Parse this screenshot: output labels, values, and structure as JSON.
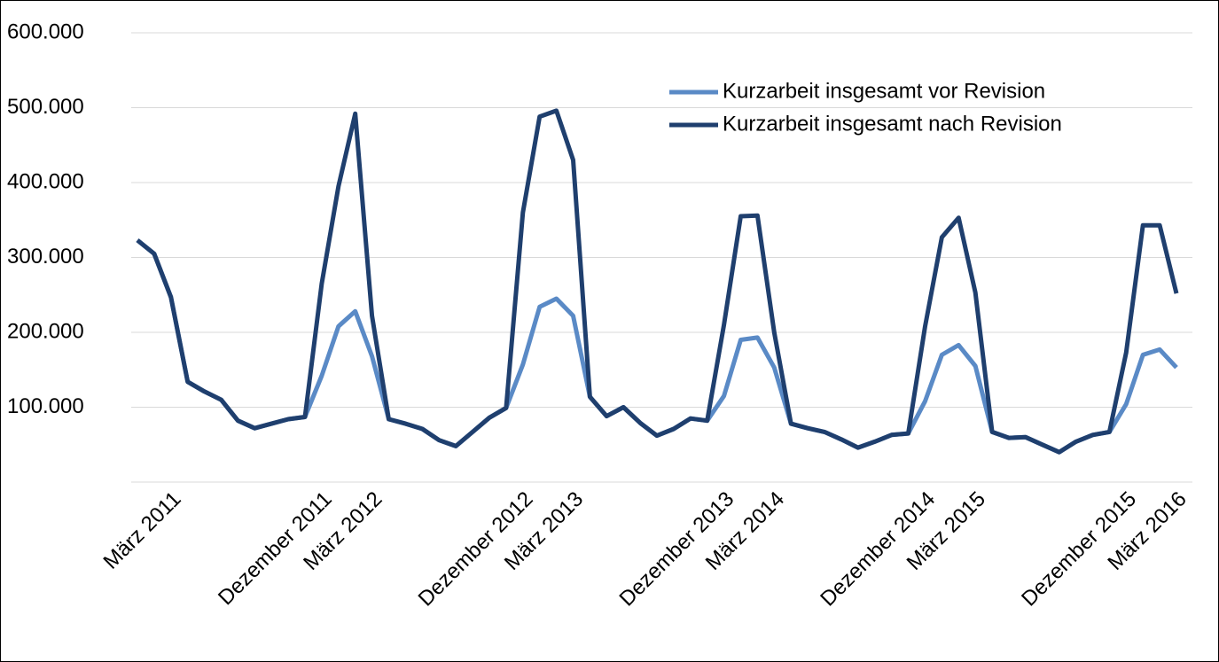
{
  "chart_data": {
    "type": "line",
    "categories": [
      null,
      null,
      "März 2011",
      null,
      null,
      null,
      null,
      null,
      null,
      null,
      null,
      "Dezember 2011",
      null,
      null,
      "März 2012",
      null,
      null,
      null,
      null,
      null,
      null,
      null,
      null,
      "Dezember 2012",
      null,
      null,
      "März 2013",
      null,
      null,
      null,
      null,
      null,
      null,
      null,
      null,
      "Dezember 2013",
      null,
      null,
      "März 2014",
      null,
      null,
      null,
      null,
      null,
      null,
      null,
      null,
      "Dezember 2014",
      null,
      null,
      "März 2015",
      null,
      null,
      null,
      null,
      null,
      null,
      null,
      null,
      "Dezember 2015",
      null,
      null,
      "März 2016"
    ],
    "series": [
      {
        "name": "Kurzarbeit insgesamt vor Revision",
        "color": "#5a8ac6",
        "values": [
          323000,
          305000,
          247000,
          134000,
          121000,
          110000,
          82000,
          72000,
          78000,
          84000,
          87000,
          142000,
          208000,
          228000,
          168000,
          84000,
          78000,
          71000,
          56000,
          48000,
          67000,
          86000,
          99000,
          157000,
          234000,
          245000,
          222000,
          114000,
          88000,
          100000,
          79000,
          62000,
          71000,
          85000,
          82000,
          115000,
          190000,
          193000,
          153000,
          78000,
          72000,
          67000,
          57000,
          46000,
          54000,
          63000,
          65000,
          108000,
          170000,
          183000,
          155000,
          67000,
          59000,
          60000,
          50000,
          40000,
          54000,
          63000,
          67000,
          104000,
          170000,
          177000,
          153000
        ]
      },
      {
        "name": "Kurzarbeit insgesamt nach Revision",
        "color": "#1f3f6e",
        "values": [
          323000,
          305000,
          247000,
          134000,
          121000,
          110000,
          82000,
          72000,
          78000,
          84000,
          87000,
          265000,
          395000,
          492000,
          222000,
          84000,
          78000,
          71000,
          56000,
          48000,
          67000,
          86000,
          99000,
          360000,
          488000,
          496000,
          430000,
          114000,
          88000,
          100000,
          79000,
          62000,
          71000,
          85000,
          82000,
          210000,
          355000,
          356000,
          200000,
          78000,
          72000,
          67000,
          57000,
          46000,
          54000,
          63000,
          65000,
          208000,
          327000,
          353000,
          253000,
          67000,
          59000,
          60000,
          50000,
          40000,
          54000,
          63000,
          67000,
          173000,
          343000,
          343000,
          252000
        ]
      }
    ],
    "ylim": [
      0,
      600000
    ],
    "yticks": [
      {
        "value": 100000,
        "label": "100.000"
      },
      {
        "value": 200000,
        "label": "200.000"
      },
      {
        "value": 300000,
        "label": "300.000"
      },
      {
        "value": 400000,
        "label": "400.000"
      },
      {
        "value": 500000,
        "label": "500.000"
      },
      {
        "value": 600000,
        "label": "600.000"
      }
    ],
    "grid": true,
    "legend": "upper right"
  }
}
